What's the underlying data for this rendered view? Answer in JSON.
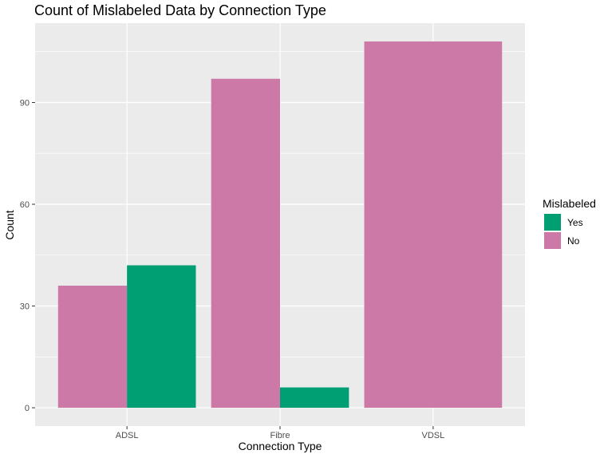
{
  "chart_data": {
    "type": "bar",
    "title": "Count of Mislabeled Data by Connection Type",
    "xlabel": "Connection Type",
    "ylabel": "Count",
    "categories": [
      "ADSL",
      "Fibre",
      "VDSL"
    ],
    "series": [
      {
        "name": "No",
        "color": "#CC79A7",
        "values": [
          36,
          97,
          108
        ]
      },
      {
        "name": "Yes",
        "color": "#009E73",
        "values": [
          42,
          6,
          null
        ]
      }
    ],
    "yticks": [
      0,
      30,
      60,
      90
    ],
    "ylim": [
      -5.4,
      113.4
    ],
    "grid": true,
    "legend": {
      "title": "Mislabeled",
      "position": "right",
      "entries": [
        {
          "label": "Yes",
          "color": "#009E73"
        },
        {
          "label": "No",
          "color": "#CC79A7"
        }
      ]
    }
  }
}
